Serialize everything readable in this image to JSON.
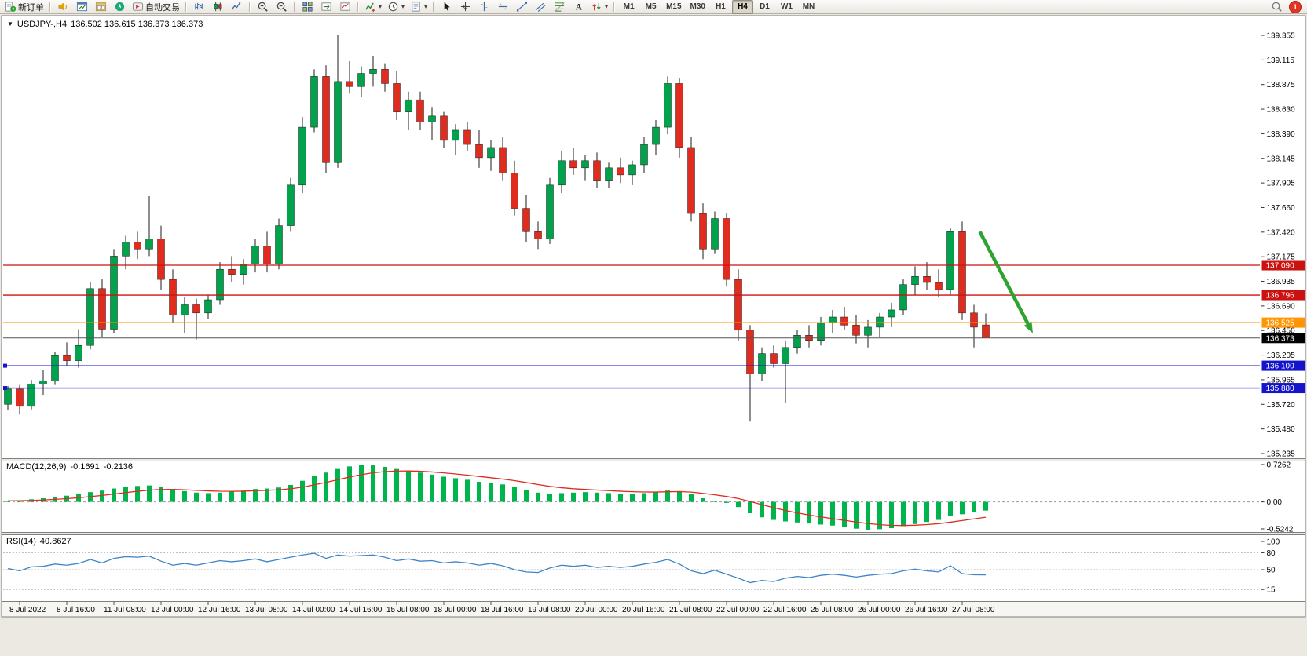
{
  "toolbar": {
    "groups": [
      {
        "items": [
          {
            "name": "new-order-button",
            "icon": "new-order",
            "label": "新订单"
          }
        ]
      },
      {
        "items": [
          {
            "name": "alerts-button",
            "icon": "horn"
          },
          {
            "name": "chart-window-button",
            "icon": "window-chart"
          },
          {
            "name": "profiles-button",
            "icon": "profiles"
          },
          {
            "name": "navigator-button",
            "icon": "navigator"
          },
          {
            "name": "autotrading-button",
            "icon": "autotrade",
            "label": "自动交易"
          }
        ]
      },
      {
        "items": [
          {
            "name": "bar-chart-button",
            "icon": "bars"
          },
          {
            "name": "candle-chart-button",
            "icon": "candles"
          },
          {
            "name": "line-chart-button",
            "icon": "line-chart"
          }
        ]
      },
      {
        "items": [
          {
            "name": "zoom-in-button",
            "icon": "zoom-in"
          },
          {
            "name": "zoom-out-button",
            "icon": "zoom-out"
          }
        ]
      },
      {
        "items": [
          {
            "name": "tile-windows-button",
            "icon": "tile"
          },
          {
            "name": "chart-shift-button",
            "icon": "chart-shift"
          },
          {
            "name": "auto-scroll-button",
            "icon": "auto-scroll"
          }
        ]
      },
      {
        "items": [
          {
            "name": "indicators-button",
            "icon": "indicators",
            "dropdown": true
          },
          {
            "name": "periods-button",
            "icon": "clock",
            "dropdown": true
          },
          {
            "name": "templates-button",
            "icon": "template",
            "dropdown": true
          }
        ]
      },
      {
        "items": [
          {
            "name": "cursor-button",
            "icon": "cursor"
          },
          {
            "name": "crosshair-button",
            "icon": "crosshair"
          },
          {
            "name": "vertical-line-button",
            "icon": "vline"
          },
          {
            "name": "horizontal-line-button",
            "icon": "hline"
          },
          {
            "name": "trendline-button",
            "icon": "trendline"
          },
          {
            "name": "channel-button",
            "icon": "channel"
          },
          {
            "name": "fibonacci-button",
            "icon": "fibonacci"
          },
          {
            "name": "text-button",
            "icon": "text-label"
          },
          {
            "name": "arrows-button",
            "icon": "arrows",
            "dropdown": true
          }
        ]
      },
      {
        "type": "timeframes",
        "items": [
          {
            "name": "timeframe-m1-button",
            "label": "M1"
          },
          {
            "name": "timeframe-m5-button",
            "label": "M5"
          },
          {
            "name": "timeframe-m15-button",
            "label": "M15"
          },
          {
            "name": "timeframe-m30-button",
            "label": "M30"
          },
          {
            "name": "timeframe-h1-button",
            "label": "H1"
          },
          {
            "name": "timeframe-h4-button",
            "label": "H4",
            "active": true
          },
          {
            "name": "timeframe-d1-button",
            "label": "D1"
          },
          {
            "name": "timeframe-w1-button",
            "label": "W1"
          },
          {
            "name": "timeframe-mn-button",
            "label": "MN"
          }
        ]
      }
    ],
    "right": {
      "badge": "1"
    }
  },
  "chart": {
    "collapse_icon": "▼",
    "title_symbol_period": "USDJPY-,H4",
    "title_ohlc": "136.502 136.615 136.373 136.373"
  },
  "chart_data": {
    "type": "candlestick",
    "title": "USDJPY-,H4",
    "symbol": "USDJPY-",
    "period": "H4",
    "current_ohlc": {
      "open": "136.502",
      "high": "136.615",
      "low": "136.373",
      "close": "136.373"
    },
    "colors": {
      "up": "#00a24b",
      "down": "#e02c1f",
      "bid_line": "#555555"
    },
    "y_ticks": [
      "139.355",
      "139.115",
      "138.875",
      "138.630",
      "138.390",
      "138.145",
      "137.905",
      "137.660",
      "137.420",
      "137.175",
      "136.935",
      "136.690",
      "136.450",
      "136.205",
      "135.965",
      "135.720",
      "135.480",
      "135.235"
    ],
    "x_labels": [
      "8 Jul 2022",
      "8 Jul 16:00",
      "11 Jul 08:00",
      "12 Jul 00:00",
      "12 Jul 16:00",
      "13 Jul 08:00",
      "14 Jul 00:00",
      "14 Jul 16:00",
      "15 Jul 08:00",
      "18 Jul 00:00",
      "18 Jul 16:00",
      "19 Jul 08:00",
      "20 Jul 00:00",
      "20 Jul 16:00",
      "21 Jul 08:00",
      "22 Jul 00:00",
      "22 Jul 16:00",
      "25 Jul 08:00",
      "26 Jul 00:00",
      "26 Jul 16:00",
      "27 Jul 08:00"
    ],
    "x_label_start_index": 1,
    "x_label_step": 4,
    "candles": [
      [
        135.72,
        135.9,
        135.66,
        135.87
      ],
      [
        135.87,
        135.91,
        135.62,
        135.7
      ],
      [
        135.7,
        135.96,
        135.67,
        135.92
      ],
      [
        135.92,
        136.06,
        135.81,
        135.95
      ],
      [
        135.95,
        136.24,
        135.91,
        136.2
      ],
      [
        136.2,
        136.33,
        136.1,
        136.15
      ],
      [
        136.15,
        136.46,
        136.08,
        136.3
      ],
      [
        136.3,
        136.92,
        136.26,
        136.86
      ],
      [
        136.86,
        136.95,
        136.38,
        136.46
      ],
      [
        136.46,
        137.25,
        136.42,
        137.18
      ],
      [
        137.18,
        137.38,
        137.05,
        137.32
      ],
      [
        137.32,
        137.42,
        137.15,
        137.25
      ],
      [
        137.25,
        137.77,
        137.18,
        137.35
      ],
      [
        137.35,
        137.48,
        136.85,
        136.95
      ],
      [
        136.95,
        137.05,
        136.52,
        136.6
      ],
      [
        136.6,
        136.78,
        136.42,
        136.7
      ],
      [
        136.7,
        136.76,
        136.36,
        136.62
      ],
      [
        136.62,
        136.8,
        136.56,
        136.75
      ],
      [
        136.75,
        137.12,
        136.7,
        137.05
      ],
      [
        137.05,
        137.18,
        136.92,
        137.0
      ],
      [
        137.0,
        137.15,
        136.9,
        137.1
      ],
      [
        137.1,
        137.35,
        137.02,
        137.28
      ],
      [
        137.28,
        137.42,
        137.02,
        137.1
      ],
      [
        137.1,
        137.55,
        137.05,
        137.48
      ],
      [
        137.48,
        137.95,
        137.42,
        137.88
      ],
      [
        137.88,
        138.55,
        137.8,
        138.45
      ],
      [
        138.45,
        139.02,
        138.4,
        138.95
      ],
      [
        138.95,
        139.06,
        138.0,
        138.1
      ],
      [
        138.1,
        139.36,
        138.05,
        138.9
      ],
      [
        138.9,
        139.1,
        138.78,
        138.85
      ],
      [
        138.85,
        139.05,
        138.75,
        138.98
      ],
      [
        138.98,
        139.15,
        138.85,
        139.02
      ],
      [
        139.02,
        139.08,
        138.8,
        138.88
      ],
      [
        138.88,
        139.0,
        138.52,
        138.6
      ],
      [
        138.6,
        138.8,
        138.42,
        138.72
      ],
      [
        138.72,
        138.8,
        138.42,
        138.5
      ],
      [
        138.5,
        138.65,
        138.32,
        138.56
      ],
      [
        138.56,
        138.6,
        138.25,
        138.32
      ],
      [
        138.32,
        138.48,
        138.18,
        138.42
      ],
      [
        138.42,
        138.5,
        138.22,
        138.28
      ],
      [
        138.28,
        138.42,
        138.05,
        138.15
      ],
      [
        138.15,
        138.32,
        138.02,
        138.25
      ],
      [
        138.25,
        138.35,
        137.92,
        138.0
      ],
      [
        138.0,
        138.12,
        137.58,
        137.65
      ],
      [
        137.65,
        137.78,
        137.32,
        137.42
      ],
      [
        137.42,
        137.52,
        137.25,
        137.35
      ],
      [
        137.35,
        137.95,
        137.3,
        137.88
      ],
      [
        137.88,
        138.22,
        137.8,
        138.12
      ],
      [
        138.12,
        138.25,
        137.98,
        138.05
      ],
      [
        138.05,
        138.18,
        137.92,
        138.12
      ],
      [
        138.12,
        138.2,
        137.85,
        137.92
      ],
      [
        137.92,
        138.1,
        137.85,
        138.05
      ],
      [
        138.05,
        138.15,
        137.9,
        137.98
      ],
      [
        137.98,
        138.12,
        137.88,
        138.08
      ],
      [
        138.08,
        138.35,
        138.0,
        138.28
      ],
      [
        138.28,
        138.52,
        138.18,
        138.45
      ],
      [
        138.45,
        138.95,
        138.38,
        138.88
      ],
      [
        138.88,
        138.93,
        138.15,
        138.25
      ],
      [
        138.25,
        138.35,
        137.52,
        137.6
      ],
      [
        137.6,
        137.7,
        137.15,
        137.25
      ],
      [
        137.25,
        137.62,
        137.2,
        137.55
      ],
      [
        137.55,
        137.6,
        136.88,
        136.95
      ],
      [
        136.95,
        137.05,
        136.35,
        136.45
      ],
      [
        136.45,
        136.5,
        135.55,
        136.02
      ],
      [
        136.02,
        136.28,
        135.95,
        136.22
      ],
      [
        136.22,
        136.3,
        136.08,
        136.12
      ],
      [
        136.12,
        136.35,
        135.73,
        136.28
      ],
      [
        136.28,
        136.45,
        136.22,
        136.4
      ],
      [
        136.4,
        136.5,
        136.28,
        136.35
      ],
      [
        136.35,
        136.58,
        136.3,
        136.52
      ],
      [
        136.52,
        136.65,
        136.42,
        136.58
      ],
      [
        136.58,
        136.68,
        136.45,
        136.5
      ],
      [
        136.5,
        136.6,
        136.32,
        136.4
      ],
      [
        136.4,
        136.55,
        136.28,
        136.48
      ],
      [
        136.48,
        136.62,
        136.38,
        136.58
      ],
      [
        136.58,
        136.72,
        136.48,
        136.65
      ],
      [
        136.65,
        136.95,
        136.6,
        136.9
      ],
      [
        136.9,
        137.08,
        136.8,
        136.98
      ],
      [
        136.98,
        137.12,
        136.85,
        136.92
      ],
      [
        136.92,
        137.05,
        136.78,
        136.85
      ],
      [
        136.85,
        137.46,
        136.8,
        137.42
      ],
      [
        137.42,
        137.52,
        136.55,
        136.62
      ],
      [
        136.62,
        136.7,
        136.28,
        136.48
      ],
      [
        136.502,
        136.615,
        136.373,
        136.373
      ]
    ],
    "h_lines": [
      {
        "price": 137.09,
        "label": "137.090",
        "color": "#cc1111",
        "tag_color": "#cc1111"
      },
      {
        "price": 136.796,
        "label": "136.796",
        "color": "#cc1111",
        "tag_color": "#cc1111"
      },
      {
        "price": 136.525,
        "label": "136.525",
        "color": "#ff9500",
        "tag_color": "#ff9500"
      },
      {
        "price": 136.373,
        "label": "136.373",
        "color": "#555555",
        "tag_color": "#000000",
        "style": "bid"
      },
      {
        "price": 136.1,
        "label": "136.100",
        "color": "#1414cc",
        "tag_color": "#1414cc",
        "handle": true
      },
      {
        "price": 135.88,
        "label": "135.880",
        "color": "#1414cc",
        "tag_color": "#1414cc",
        "handle": true
      }
    ],
    "trend_arrow": {
      "from": {
        "index": 82.5,
        "price": 137.42
      },
      "to": {
        "index": 87,
        "price": 136.42
      },
      "color": "#2fa32f"
    },
    "indicators": {
      "macd": {
        "label": "MACD(12,26,9)",
        "value_main": "-0.1691",
        "value_signal": "-0.2136",
        "axis_ticks": [
          "0.7262",
          "0.00",
          "-0.5242"
        ],
        "hist_color": "#00b44c",
        "signal_color": "#e02c1f",
        "histogram": [
          0.02,
          0.03,
          0.05,
          0.07,
          0.1,
          0.12,
          0.15,
          0.19,
          0.22,
          0.26,
          0.29,
          0.31,
          0.32,
          0.29,
          0.25,
          0.21,
          0.18,
          0.17,
          0.18,
          0.2,
          0.22,
          0.25,
          0.26,
          0.28,
          0.33,
          0.41,
          0.51,
          0.57,
          0.64,
          0.69,
          0.72,
          0.71,
          0.68,
          0.64,
          0.61,
          0.57,
          0.53,
          0.49,
          0.46,
          0.43,
          0.39,
          0.37,
          0.34,
          0.29,
          0.23,
          0.18,
          0.16,
          0.17,
          0.18,
          0.19,
          0.18,
          0.17,
          0.16,
          0.16,
          0.17,
          0.19,
          0.22,
          0.21,
          0.15,
          0.07,
          0.02,
          -0.02,
          -0.1,
          -0.22,
          -0.3,
          -0.35,
          -0.38,
          -0.4,
          -0.42,
          -0.44,
          -0.46,
          -0.49,
          -0.52,
          -0.54,
          -0.53,
          -0.51,
          -0.47,
          -0.43,
          -0.39,
          -0.35,
          -0.28,
          -0.24,
          -0.2,
          -0.1691
        ]
      },
      "rsi": {
        "label": "RSI(14)",
        "value": "40.8627",
        "axis_ticks": [
          "100",
          "80",
          "50",
          "15"
        ],
        "levels": [
          80,
          50,
          15
        ],
        "color": "#3d85c8",
        "series": [
          52,
          48,
          55,
          56,
          60,
          58,
          61,
          68,
          62,
          70,
          73,
          72,
          74,
          65,
          58,
          61,
          58,
          62,
          66,
          64,
          66,
          69,
          64,
          68,
          72,
          76,
          79,
          70,
          76,
          74,
          75,
          76,
          72,
          66,
          69,
          65,
          66,
          62,
          64,
          62,
          58,
          61,
          57,
          50,
          46,
          45,
          53,
          58,
          56,
          58,
          54,
          56,
          54,
          56,
          60,
          63,
          68,
          60,
          48,
          43,
          49,
          42,
          35,
          27,
          31,
          29,
          35,
          38,
          36,
          40,
          42,
          40,
          37,
          40,
          42,
          43,
          48,
          51,
          48,
          46,
          57,
          43,
          41,
          40.86
        ]
      }
    }
  }
}
